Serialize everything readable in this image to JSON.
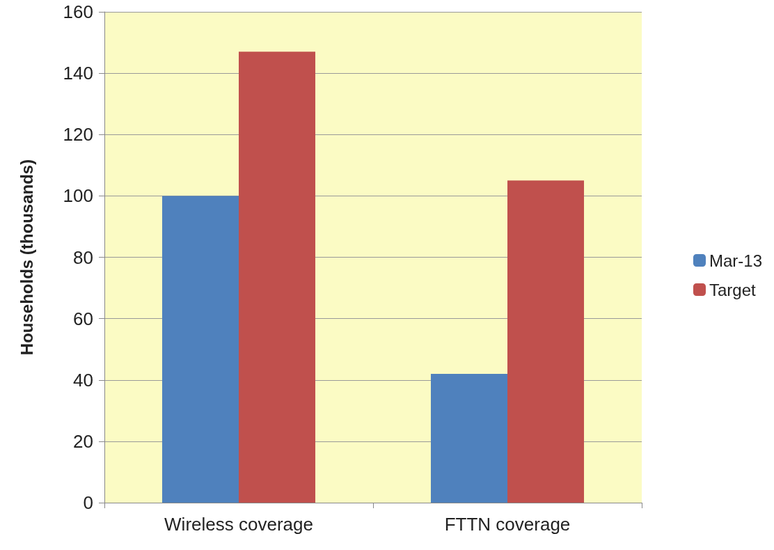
{
  "chart_data": {
    "type": "bar",
    "ylabel": "Households (thousands)",
    "categories": [
      "Wireless coverage",
      "FTTN coverage"
    ],
    "series": [
      {
        "name": "Mar-13",
        "color": "#4f81bd",
        "values": [
          100,
          42
        ]
      },
      {
        "name": "Target",
        "color": "#c0504d",
        "values": [
          147,
          105
        ]
      }
    ],
    "ylim": [
      0,
      160
    ],
    "yticks": [
      0,
      20,
      40,
      60,
      80,
      100,
      120,
      140,
      160
    ],
    "grid": "y",
    "legend": "right"
  }
}
